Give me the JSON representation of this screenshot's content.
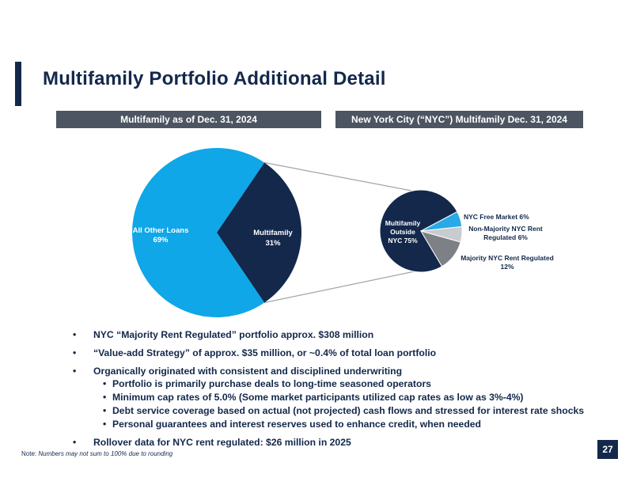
{
  "title": "Multifamily Portfolio Additional Detail",
  "headers": {
    "left": "Multifamily as of Dec. 31, 2024",
    "right": "New York City (“NYC”) Multifamily Dec. 31, 2024"
  },
  "colors": {
    "navy": "#13284b",
    "light_blue": "#0fa7e8",
    "gray_header": "#4c5561",
    "light_gray": "#c8cbcf",
    "mid_gray": "#7d8085",
    "bright_blue": "#29a9e6"
  },
  "chart_data": [
    {
      "type": "pie",
      "title": "Multifamily as of Dec. 31, 2024",
      "slices": [
        {
          "label": "All Other Loans",
          "pct_label": "69%",
          "value": 69
        },
        {
          "label": "Multifamily",
          "pct_label": "31%",
          "value": 31
        }
      ]
    },
    {
      "type": "pie",
      "title": "New York City (“NYC”) Multifamily Dec. 31, 2024",
      "slices": [
        {
          "label_lines": [
            "Multifamily",
            "Outside",
            "NYC 75%"
          ],
          "value": 75
        },
        {
          "label_lines": [
            "NYC Free Market 6%"
          ],
          "value": 6
        },
        {
          "label_lines": [
            "Non-Majority NYC Rent",
            "Regulated 6%"
          ],
          "value": 6
        },
        {
          "label_lines": [
            "Majority NYC Rent Regulated",
            "12%"
          ],
          "value": 12
        }
      ]
    }
  ],
  "bullets": {
    "b1": "NYC “Majority Rent Regulated” portfolio approx. $308 million",
    "b2": "“Value-add Strategy” of approx. $35 million, or ~0.4% of total loan portfolio",
    "b3": "Organically originated with consistent and disciplined underwriting",
    "b3_subs": [
      "Portfolio is primarily purchase deals to long-time seasoned operators",
      "Minimum cap rates of 5.0% (Some market participants utilized cap rates as low as 3%-4%)",
      "Debt service coverage based on actual (not projected) cash flows and stressed for interest rate shocks",
      "Personal guarantees and interest reserves used to enhance credit, when needed"
    ],
    "b4": "Rollover data for NYC rent regulated: $26 million in 2025"
  },
  "note": {
    "prefix": "Note:",
    "text": "Numbers may not sum to 100% due to rounding"
  },
  "page_number": "27"
}
